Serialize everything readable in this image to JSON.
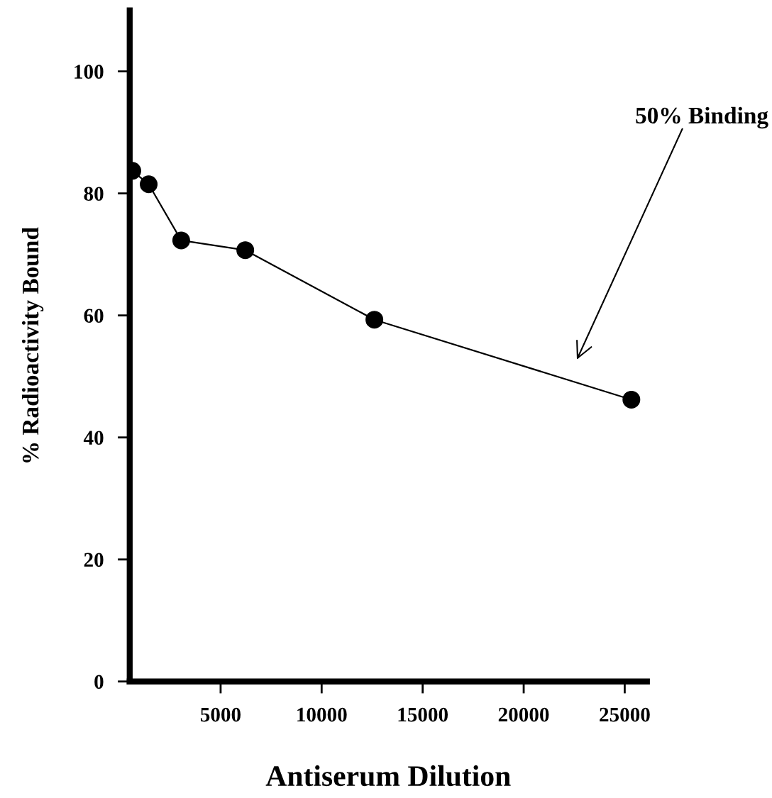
{
  "chart_data": {
    "type": "line",
    "xlabel": "Antiserum Dilution",
    "ylabel": "% Radioactivity Bound",
    "x": [
      630,
      1440,
      3050,
      6220,
      12610,
      25330
    ],
    "series": [
      {
        "color": "#000000",
        "values": [
          83.7,
          81.5,
          72.3,
          70.7,
          59.3,
          46.2
        ]
      }
    ],
    "marker": "circle",
    "line_style": "solid",
    "grid": false,
    "legend": false,
    "xlim": [
      500,
      26100
    ],
    "xticks": [
      5000,
      10000,
      15000,
      20000,
      25000
    ],
    "ylim": [
      0,
      110
    ],
    "yticks": [
      0,
      20,
      40,
      60,
      80,
      100
    ],
    "annotations": [
      "50% Binding"
    ]
  }
}
